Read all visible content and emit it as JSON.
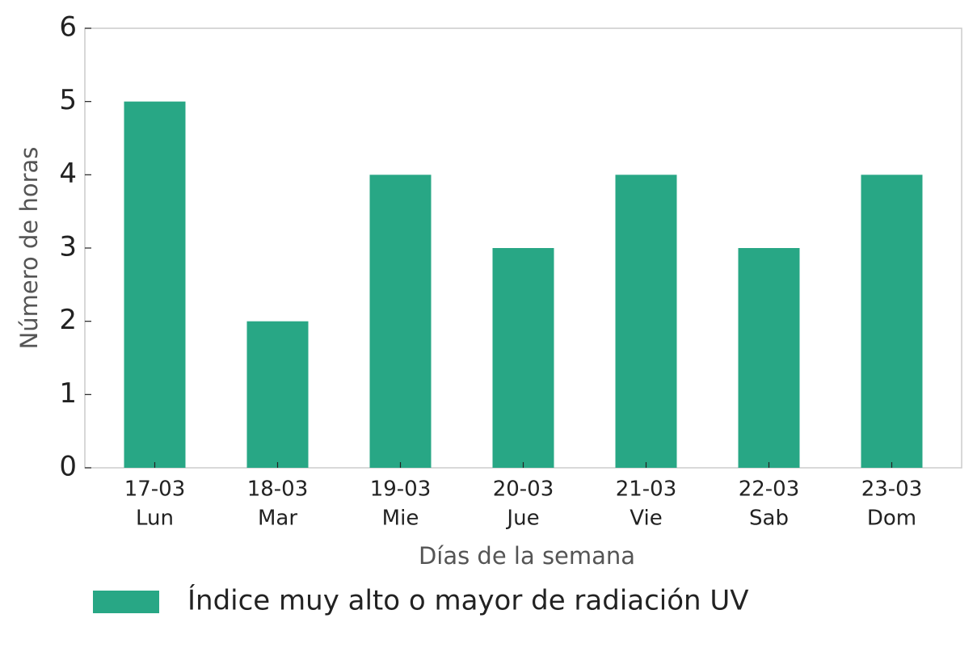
{
  "chart_data": {
    "type": "bar",
    "categories": [
      [
        "17-03",
        "Lun"
      ],
      [
        "18-03",
        "Mar"
      ],
      [
        "19-03",
        "Mie"
      ],
      [
        "20-03",
        "Jue"
      ],
      [
        "21-03",
        "Vie"
      ],
      [
        "22-03",
        "Sab"
      ],
      [
        "23-03",
        "Dom"
      ]
    ],
    "series": [
      {
        "name": "Índice muy alto o mayor de radiación UV",
        "color": "#28a785",
        "values": [
          5,
          2,
          4,
          3,
          4,
          3,
          4
        ]
      }
    ],
    "xlabel": "Días de la semana",
    "ylabel": "Número de horas",
    "ylim": [
      0,
      6
    ],
    "yticks": [
      0,
      1,
      2,
      3,
      4,
      5,
      6
    ],
    "legend": "bottom"
  }
}
